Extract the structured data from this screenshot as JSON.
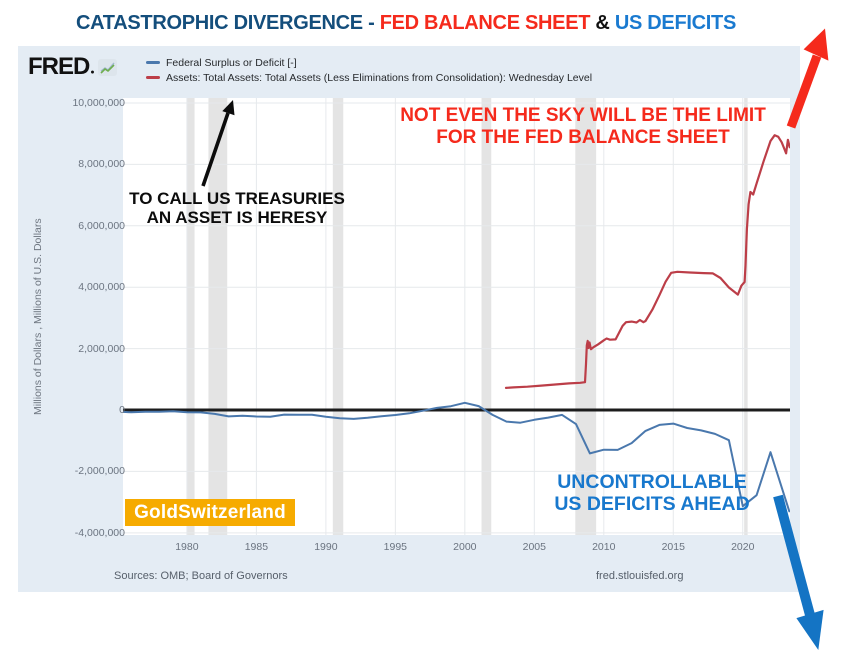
{
  "title": {
    "part1": "CATASTROPHIC DIVERGENCE - ",
    "part2": "FED BALANCE SHEET",
    "amp": " & ",
    "part3": "US DEFICITS"
  },
  "header": {
    "logo": "FRED"
  },
  "axes": {
    "y_title": "Millions of Dollars , Millions of U.S. Dollars"
  },
  "annotations": {
    "sky": {
      "line1": "NOT EVEN THE SKY WILL BE THE LIMIT",
      "line2": "FOR THE FED BALANCE SHEET",
      "color": "#f52a1c"
    },
    "heresy": {
      "line1": "TO CALL US TREASURIES",
      "line2": "AN ASSET IS HERESY",
      "color": "#0c0c0c"
    },
    "deficits": {
      "line1": "UNCONTROLLABLE",
      "line2": "US DEFICITS AHEAD",
      "color": "#1878cd"
    }
  },
  "badge": {
    "text": "GoldSwitzerland",
    "bg": "#f6ab00"
  },
  "footer": {
    "sources": "Sources: OMB; Board of Governors",
    "site": "fred.stlouisfed.org"
  },
  "chart_data": {
    "type": "line",
    "x_domain": [
      1975.4,
      2023.4
    ],
    "y_domain": [
      -4071000,
      10162000
    ],
    "y_ticks": [
      10000000,
      8000000,
      6000000,
      4000000,
      2000000,
      0,
      -2000000,
      -4000000
    ],
    "y_tick_labels": [
      "10,000,000",
      "8,000,000",
      "6,000,000",
      "4,000,000",
      "2,000,000",
      "0",
      "-2,000,000",
      "-4,000,000"
    ],
    "x_ticks": [
      1980,
      1985,
      1990,
      1995,
      2000,
      2005,
      2010,
      2015,
      2020
    ],
    "grid": true,
    "legend_position": "top-left",
    "colors": {
      "grid": "#e6e9ec",
      "zero_line": "#1c1c1c",
      "recession": "#e4e4e4"
    },
    "recessions": [
      [
        1980.0,
        1980.55
      ],
      [
        1981.55,
        1982.9
      ],
      [
        1990.5,
        1991.25
      ],
      [
        2001.2,
        2001.9
      ],
      [
        2007.95,
        2009.45
      ],
      [
        2020.1,
        2020.35
      ]
    ],
    "series": [
      {
        "id": "fed-total-assets",
        "name": "Assets: Total Assets: Total Assets (Less Eliminations from Consolidation): Wednesday Level",
        "color": "#bc3e48",
        "width": 2.2,
        "points": [
          [
            2002.96,
            720000
          ],
          [
            2003.5,
            735000
          ],
          [
            2004.5,
            760000
          ],
          [
            2005.5,
            795000
          ],
          [
            2006.5,
            830000
          ],
          [
            2007.5,
            865000
          ],
          [
            2008.3,
            885000
          ],
          [
            2008.65,
            905000
          ],
          [
            2008.72,
            1500000
          ],
          [
            2008.78,
            2100000
          ],
          [
            2008.84,
            2250000
          ],
          [
            2008.9,
            2020000
          ],
          [
            2008.97,
            2200000
          ],
          [
            2009.07,
            1980000
          ],
          [
            2009.3,
            2060000
          ],
          [
            2009.6,
            2140000
          ],
          [
            2010.0,
            2270000
          ],
          [
            2010.2,
            2330000
          ],
          [
            2010.45,
            2290000
          ],
          [
            2010.85,
            2300000
          ],
          [
            2011.1,
            2520000
          ],
          [
            2011.35,
            2740000
          ],
          [
            2011.6,
            2860000
          ],
          [
            2012.0,
            2880000
          ],
          [
            2012.35,
            2850000
          ],
          [
            2012.6,
            2930000
          ],
          [
            2012.85,
            2860000
          ],
          [
            2013.0,
            2900000
          ],
          [
            2013.5,
            3270000
          ],
          [
            2014.0,
            3740000
          ],
          [
            2014.45,
            4180000
          ],
          [
            2014.85,
            4470000
          ],
          [
            2015.3,
            4500000
          ],
          [
            2016.2,
            4480000
          ],
          [
            2017.2,
            4460000
          ],
          [
            2017.85,
            4450000
          ],
          [
            2018.4,
            4300000
          ],
          [
            2019.0,
            3990000
          ],
          [
            2019.65,
            3760000
          ],
          [
            2019.9,
            4050000
          ],
          [
            2020.13,
            4170000
          ],
          [
            2020.2,
            4700000
          ],
          [
            2020.3,
            5900000
          ],
          [
            2020.42,
            6700000
          ],
          [
            2020.55,
            7100000
          ],
          [
            2020.75,
            7020000
          ],
          [
            2021.0,
            7380000
          ],
          [
            2021.5,
            8100000
          ],
          [
            2022.0,
            8760000
          ],
          [
            2022.3,
            8950000
          ],
          [
            2022.55,
            8900000
          ],
          [
            2022.8,
            8720000
          ],
          [
            2023.0,
            8500000
          ],
          [
            2023.12,
            8360000
          ],
          [
            2023.25,
            8800000
          ],
          [
            2023.38,
            8560000
          ]
        ]
      },
      {
        "id": "federal-surplus-or-deficit",
        "name": "Federal Surplus or Deficit [-]",
        "color": "#4a78ad",
        "width": 2,
        "points": [
          [
            1975,
            -53242
          ],
          [
            1976,
            -73732
          ],
          [
            1977,
            -53659
          ],
          [
            1978,
            -59185
          ],
          [
            1979,
            -40726
          ],
          [
            1980,
            -73830
          ],
          [
            1981,
            -78968
          ],
          [
            1982,
            -127977
          ],
          [
            1983,
            -207802
          ],
          [
            1984,
            -185367
          ],
          [
            1985,
            -212308
          ],
          [
            1986,
            -221227
          ],
          [
            1987,
            -149730
          ],
          [
            1988,
            -155178
          ],
          [
            1989,
            -152639
          ],
          [
            1990,
            -221036
          ],
          [
            1991,
            -269238
          ],
          [
            1992,
            -290321
          ],
          [
            1993,
            -255051
          ],
          [
            1994,
            -203186
          ],
          [
            1995,
            -163952
          ],
          [
            1996,
            -107431
          ],
          [
            1997,
            -21884
          ],
          [
            1998,
            69270
          ],
          [
            1999,
            125610
          ],
          [
            2000,
            236241
          ],
          [
            2001,
            128236
          ],
          [
            2002,
            -157758
          ],
          [
            2003,
            -377585
          ],
          [
            2004,
            -412727
          ],
          [
            2005,
            -318346
          ],
          [
            2006,
            -248181
          ],
          [
            2007,
            -160701
          ],
          [
            2008,
            -458553
          ],
          [
            2009,
            -1412688
          ],
          [
            2010,
            -1294373
          ],
          [
            2011,
            -1299599
          ],
          [
            2012,
            -1076573
          ],
          [
            2013,
            -679775
          ],
          [
            2014,
            -484793
          ],
          [
            2015,
            -441960
          ],
          [
            2016,
            -584651
          ],
          [
            2017,
            -665446
          ],
          [
            2018,
            -779137
          ],
          [
            2019,
            -984388
          ],
          [
            2020,
            -3131917
          ],
          [
            2021,
            -2775535
          ],
          [
            2022,
            -1375389
          ],
          [
            2023.35,
            -3300000
          ]
        ]
      }
    ],
    "title": "CATASTROPHIC DIVERGENCE - FED BALANCE SHEET & US DEFICITS",
    "xlabel": "",
    "ylabel": "Millions of Dollars , Millions of U.S. Dollars"
  }
}
